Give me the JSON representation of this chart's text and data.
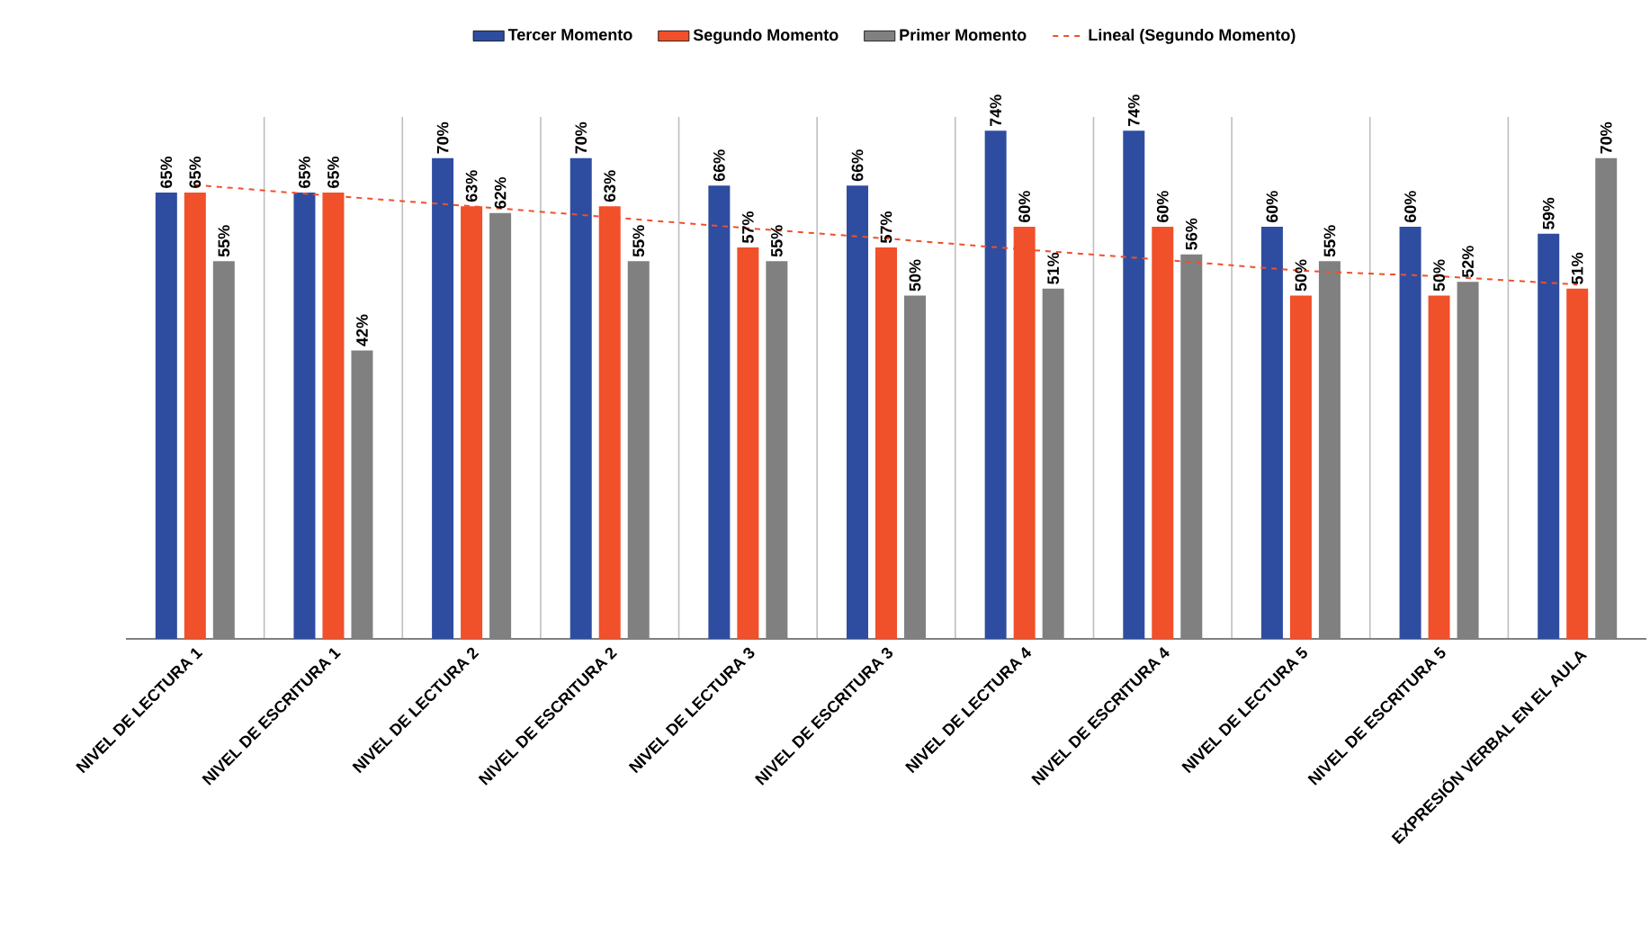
{
  "chart_data": {
    "type": "bar",
    "categories": [
      "NIVEL DE LECTURA 1",
      "NIVEL DE ESCRITURA 1",
      "NIVEL DE LECTURA 2",
      "NIVEL DE ESCRITURA 2",
      "NIVEL DE LECTURA 3",
      "NIVEL DE ESCRITURA 3",
      "NIVEL DE LECTURA 4",
      "NIVEL DE ESCRITURA 4",
      "NIVEL DE LECTURA 5",
      "NIVEL DE ESCRITURA 5",
      "EXPRESIÓN VERBAL EN EL AULA"
    ],
    "series": [
      {
        "name": "Tercer Momento",
        "color": "#2e4da0",
        "values": [
          65,
          65,
          70,
          70,
          66,
          66,
          74,
          74,
          60,
          60,
          59
        ],
        "value_labels": [
          "65%",
          "65%",
          "70%",
          "70%",
          "66%",
          "66%",
          "74%",
          "74%",
          "60%",
          "60%",
          "59%"
        ]
      },
      {
        "name": "Segundo Momento",
        "color": "#f0502a",
        "values": [
          65,
          65,
          63,
          63,
          57,
          57,
          60,
          60,
          50,
          50,
          51
        ],
        "value_labels": [
          "65%",
          "65%",
          "63%",
          "63%",
          "57%",
          "57%",
          "60%",
          "60%",
          "50%",
          "50%",
          "51%"
        ]
      },
      {
        "name": "Primer Momento",
        "color": "#808080",
        "values": [
          55,
          42,
          62,
          55,
          55,
          50,
          51,
          56,
          55,
          52,
          70
        ],
        "value_labels": [
          "55%",
          "42%",
          "62%",
          "55%",
          "55%",
          "50%",
          "51%",
          "56%",
          "55%",
          "52%",
          "70%"
        ]
      },
      {
        "name": "Lineal (Segundo Momento)",
        "type": "line",
        "color": "#f0502a",
        "line_style": "dashed",
        "marker": "none",
        "values": [
          66.1,
          64.5,
          63.0,
          61.4,
          59.8,
          58.3,
          56.7,
          55.2,
          53.6,
          52.8,
          51.6
        ]
      }
    ],
    "ylim": [
      0,
      76
    ],
    "tick_labels": "x",
    "grid": "x",
    "legend": "top"
  }
}
